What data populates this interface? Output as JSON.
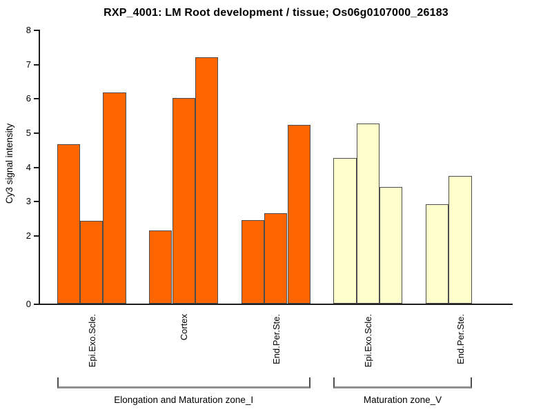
{
  "chart_data": {
    "type": "bar",
    "title": "RXP_4001: LM Root development / tissue; Os06g0107000_26183",
    "ylabel": "Cy3 signal intensity",
    "xlabel": "",
    "ylim": [
      0,
      8
    ],
    "yticks": [
      0,
      2,
      3,
      4,
      5,
      6,
      7,
      8
    ],
    "grid": false,
    "legend": "none",
    "bar_border_color": "#4d4d4d",
    "zone_colors": {
      "zone_I": "#ff6600",
      "zone_V": "#ffffcc"
    },
    "groups": [
      {
        "tissue": "Epi.Exo.Scle.",
        "zone": 0,
        "color": "#ff6600",
        "values": [
          4.65,
          2.42,
          6.17
        ]
      },
      {
        "tissue": "Cortex",
        "zone": 0,
        "color": "#ff6600",
        "values": [
          2.13,
          6.0,
          7.2
        ]
      },
      {
        "tissue": "End.Per.Ste.",
        "zone": 0,
        "color": "#ff6600",
        "values": [
          2.43,
          2.64,
          5.23
        ]
      },
      {
        "tissue": "Epi.Exo.Scle.",
        "zone": 1,
        "color": "#ffffcc",
        "values": [
          4.26,
          5.27,
          3.4
        ]
      },
      {
        "tissue": "End.Per.Ste.",
        "zone": 1,
        "color": "#ffffcc",
        "values": [
          2.9,
          3.73,
          0
        ]
      }
    ],
    "zone_labels": [
      "Elongation and Maturation zone_I",
      "Maturation zone_V"
    ]
  }
}
